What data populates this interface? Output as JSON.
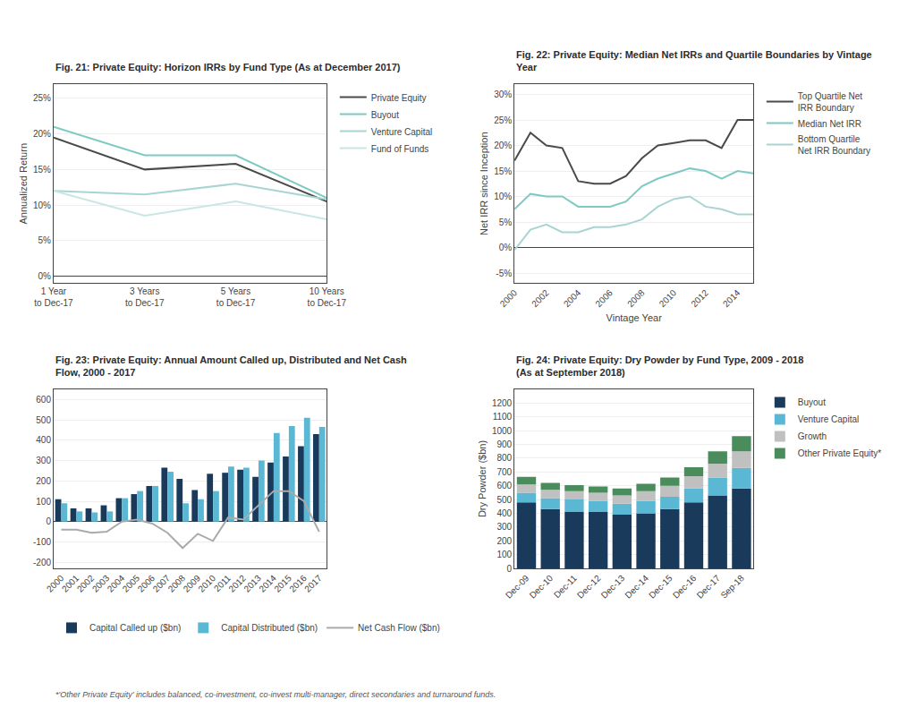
{
  "chart_data": [
    {
      "type": "line",
      "title": "Fig. 21: Private Equity: Horizon IRRs by Fund Type (As at December 2017)",
      "ylabel": "Annualized Return",
      "categories": [
        "1 Year\nto Dec-17",
        "3 Years\nto Dec-17",
        "5 Years\nto Dec-17",
        "10 Years\nto Dec-17"
      ],
      "series": [
        {
          "name": "Private Equity",
          "color": "#4a4a4a",
          "values": [
            19.5,
            15.0,
            15.8,
            10.5
          ]
        },
        {
          "name": "Buyout",
          "color": "#7ecac3",
          "values": [
            21.0,
            17.0,
            17.0,
            11.0
          ]
        },
        {
          "name": "Venture Capital",
          "color": "#a8d5d1",
          "values": [
            12.0,
            11.5,
            13.0,
            10.8
          ]
        },
        {
          "name": "Fund of Funds",
          "color": "#c8e6e4",
          "values": [
            12.0,
            8.5,
            10.5,
            8.0
          ]
        }
      ],
      "ylim": [
        -1,
        27
      ],
      "yticks": [
        {
          "value": 0,
          "label": "0%"
        },
        {
          "value": 5,
          "label": "5%"
        },
        {
          "value": 10,
          "label": "10%"
        },
        {
          "value": 15,
          "label": "15%"
        },
        {
          "value": 20,
          "label": "20%"
        },
        {
          "value": 25,
          "label": "25%"
        }
      ],
      "grid": true,
      "legend": "right"
    },
    {
      "type": "line",
      "title": "Fig. 22: Private Equity: Median Net IRRs and Quartile Boundaries by Vintage\nYear",
      "xlabel": "Vintage Year",
      "ylabel": "Net IRR since Inception",
      "x": [
        2000,
        2001,
        2002,
        2003,
        2004,
        2005,
        2006,
        2007,
        2008,
        2009,
        2010,
        2011,
        2012,
        2013,
        2014,
        2015
      ],
      "series": [
        {
          "name": "Top Quartile Net\nIRR Boundary",
          "color": "#4a4a4a",
          "values": [
            17.0,
            22.5,
            20.0,
            19.5,
            13.0,
            12.5,
            12.5,
            14.0,
            17.5,
            20.0,
            20.5,
            21.0,
            21.0,
            19.5,
            25.0,
            25.0
          ]
        },
        {
          "name": "Median Net IRR",
          "color": "#7ecac3",
          "values": [
            7.5,
            10.5,
            10.0,
            10.0,
            8.0,
            8.0,
            8.0,
            9.0,
            12.0,
            13.5,
            14.5,
            15.5,
            15.0,
            13.5,
            15.0,
            14.5
          ]
        },
        {
          "name": "Bottom Quartile\nNet IRR Boundary",
          "color": "#a8d5d1",
          "values": [
            -0.5,
            3.5,
            4.5,
            3.0,
            3.0,
            4.0,
            4.0,
            4.5,
            5.5,
            8.0,
            9.5,
            10.0,
            8.0,
            7.5,
            6.5,
            6.5
          ]
        }
      ],
      "xlim": [
        2000,
        2015
      ],
      "xticks": [
        2000,
        2002,
        2004,
        2006,
        2008,
        2010,
        2012,
        2014
      ],
      "ylim": [
        -7,
        32
      ],
      "yticks": [
        {
          "value": -5,
          "label": "-5%"
        },
        {
          "value": 0,
          "label": "0%"
        },
        {
          "value": 5,
          "label": "5%"
        },
        {
          "value": 10,
          "label": "10%"
        },
        {
          "value": 15,
          "label": "15%"
        },
        {
          "value": 20,
          "label": "20%"
        },
        {
          "value": 25,
          "label": "25%"
        },
        {
          "value": 30,
          "label": "30%"
        }
      ],
      "grid": true,
      "legend": "right"
    },
    {
      "type": "bar",
      "title": "Fig. 23: Private Equity: Annual Amount Called up, Distributed and Net Cash\nFlow, 2000 - 2017",
      "categories": [
        "2000",
        "2001",
        "2002",
        "2003",
        "2004",
        "2005",
        "2006",
        "2007",
        "2008",
        "2009",
        "2010",
        "2011",
        "2012",
        "2013",
        "2014",
        "2015",
        "2016",
        "2017"
      ],
      "series": [
        {
          "name": "Capital Called up ($bn)",
          "type": "bar",
          "color": "#1a3a5c",
          "values": [
            110,
            65,
            65,
            80,
            115,
            135,
            175,
            265,
            210,
            155,
            235,
            240,
            255,
            220,
            290,
            320,
            370,
            430
          ]
        },
        {
          "name": "Capital Distributed ($bn)",
          "type": "bar",
          "color": "#5bb8d4",
          "values": [
            90,
            50,
            45,
            50,
            115,
            150,
            175,
            245,
            90,
            110,
            150,
            270,
            265,
            300,
            435,
            470,
            510,
            465
          ]
        },
        {
          "name": "Net Cash Flow ($bn)",
          "type": "line",
          "color": "#aaaaaa",
          "values": [
            -40,
            -40,
            -55,
            -50,
            0,
            10,
            -10,
            -55,
            -130,
            -60,
            -95,
            20,
            10,
            80,
            150,
            150,
            100,
            -50
          ]
        }
      ],
      "ylim": [
        -230,
        650
      ],
      "yticks": [
        -200,
        -100,
        0,
        100,
        200,
        300,
        400,
        500,
        600
      ],
      "grid": true,
      "legend": "bottom"
    },
    {
      "type": "bar",
      "stacked": true,
      "title": "Fig. 24: Private Equity: Dry Powder by Fund Type, 2009 - 2018\n(As at September 2018)",
      "ylabel": "Dry Powder ($bn)",
      "categories": [
        "Dec-09",
        "Dec-10",
        "Dec-11",
        "Dec-12",
        "Dec-13",
        "Dec-14",
        "Dec-15",
        "Dec-16",
        "Dec-17",
        "Sep-18"
      ],
      "series": [
        {
          "name": "Buyout",
          "color": "#1a3a5c",
          "values": [
            480,
            430,
            410,
            410,
            390,
            400,
            430,
            480,
            530,
            580
          ]
        },
        {
          "name": "Venture Capital",
          "color": "#5bb8d4",
          "values": [
            70,
            80,
            90,
            80,
            80,
            90,
            90,
            100,
            130,
            150
          ]
        },
        {
          "name": "Growth",
          "color": "#c0c0c0",
          "values": [
            60,
            60,
            60,
            60,
            60,
            70,
            80,
            90,
            100,
            120
          ]
        },
        {
          "name": "Other Private Equity*",
          "color": "#4a8c5c",
          "values": [
            55,
            50,
            45,
            45,
            50,
            55,
            60,
            65,
            90,
            110
          ]
        }
      ],
      "ylim": [
        0,
        1300
      ],
      "yticks": [
        0,
        100,
        200,
        300,
        400,
        500,
        600,
        700,
        800,
        900,
        1000,
        1100,
        1200
      ],
      "grid": true,
      "legend": "right",
      "annotations": [
        "*'Other Private Equity' includes balanced, co-investment, co-invest multi-manager, direct secondaries and turnaround funds."
      ]
    }
  ]
}
